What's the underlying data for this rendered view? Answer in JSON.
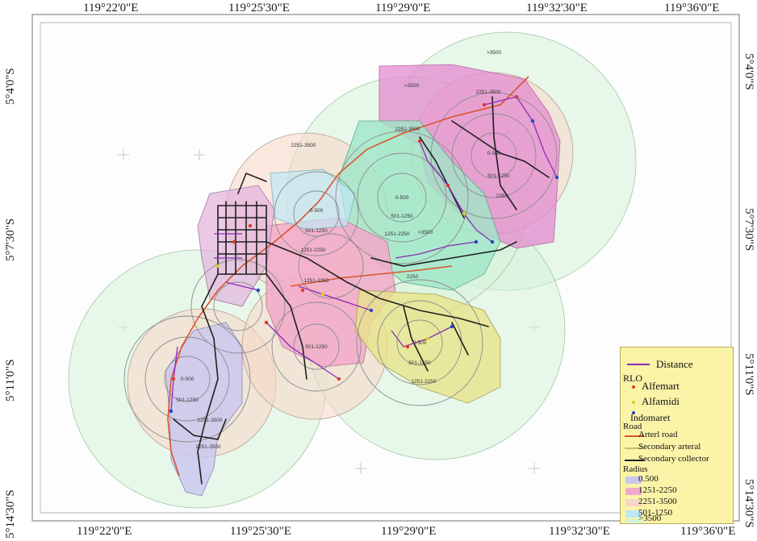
{
  "frame": {
    "top_labels": [
      "119°22'0\"E",
      "119°25'30\"E",
      "119°29'0\"E",
      "119°32'30\"E",
      "119°36'0\"E"
    ],
    "bottom_labels": [
      "119°22'0\"E",
      "119°25'30\"E",
      "119°29'0\"E",
      "119°32'30\"E",
      "119°36'0\"E"
    ],
    "left_labels": [
      "5°4'0\"S",
      "5°7'30\"S",
      "5°11'0\"S",
      "5°14'30\"S"
    ],
    "right_labels": [
      "5°4'0\"S",
      "5°7'30\"S",
      "5°11'0\"S",
      "5°14'30\"S"
    ]
  },
  "colors": {
    "zone_0_500": "#c9c6f0",
    "zone_501_1250": "#bfe8f5",
    "zone_1251_2250": "#f2a9c9",
    "zone_2251_3500": "#f7d7c6",
    "zone_over_3500": "#d5f3d8",
    "district_a": "#e48bd0",
    "district_b": "#9fe6c8",
    "district_c": "#e7e38a",
    "arterial_road": "#d9542a",
    "secondary_arterial": "#c9bb6a",
    "secondary_collector": "#1f1f1f",
    "distance_line": "#8e2bb8",
    "alfamart": "#e03b2b",
    "alfamidi": "#d8cf2a",
    "indomaret": "#2546c4",
    "legend_bg": "#fbf3a8"
  },
  "zone_labels": {
    "z1_0_500": "0-500",
    "z1_501_1250": "501-1250",
    "z1_1251_2250": "1251-2250",
    "z1_2251_3500": "2251-3500",
    "z2_0_500": "0-500",
    "z2_501_1250": "501-1250",
    "z2_1251_2250": "1251-2250",
    "z2_over_3500": ">3500",
    "z3_2251_3500": "2251-3500",
    "z3_0_500": "0-500",
    "z4_501_1250": "501-1250",
    "z4_2250": "2250",
    "z5_0_500": "0-500",
    "z5_501_1250": "501-1250",
    "z5_1251_2250": "1251-2250",
    "z6_over_3500_a": ">3500",
    "z6_over_3500_b": ">3500",
    "z6_2251_3500": "2251-3500",
    "z7_501_1250": "501-1250",
    "z7_1251_2250": "1251-2250",
    "z8_0_500": "0-500",
    "z8_501_1250": "501-1250",
    "z8_2251_3500": "2251-3500",
    "z9_2250": "2250",
    "z9_2251_3500": "2251-3500"
  },
  "legend": {
    "distance": "Distance",
    "rlo_title": "RLO",
    "alfamart": "Alfemart",
    "alfamidi": "Alfamidi",
    "indomaret": "Indomaret",
    "road_title": "Road",
    "arterial": "Arterl road",
    "secondary_arterial": "Secondary arteral",
    "secondary_collector": "Secondary collector",
    "radius_title": "Radius",
    "r1": "0.500",
    "r2": "1251-2250",
    "r3": "2251-3500",
    "r4": "501-1250",
    "r5": ">3500"
  }
}
